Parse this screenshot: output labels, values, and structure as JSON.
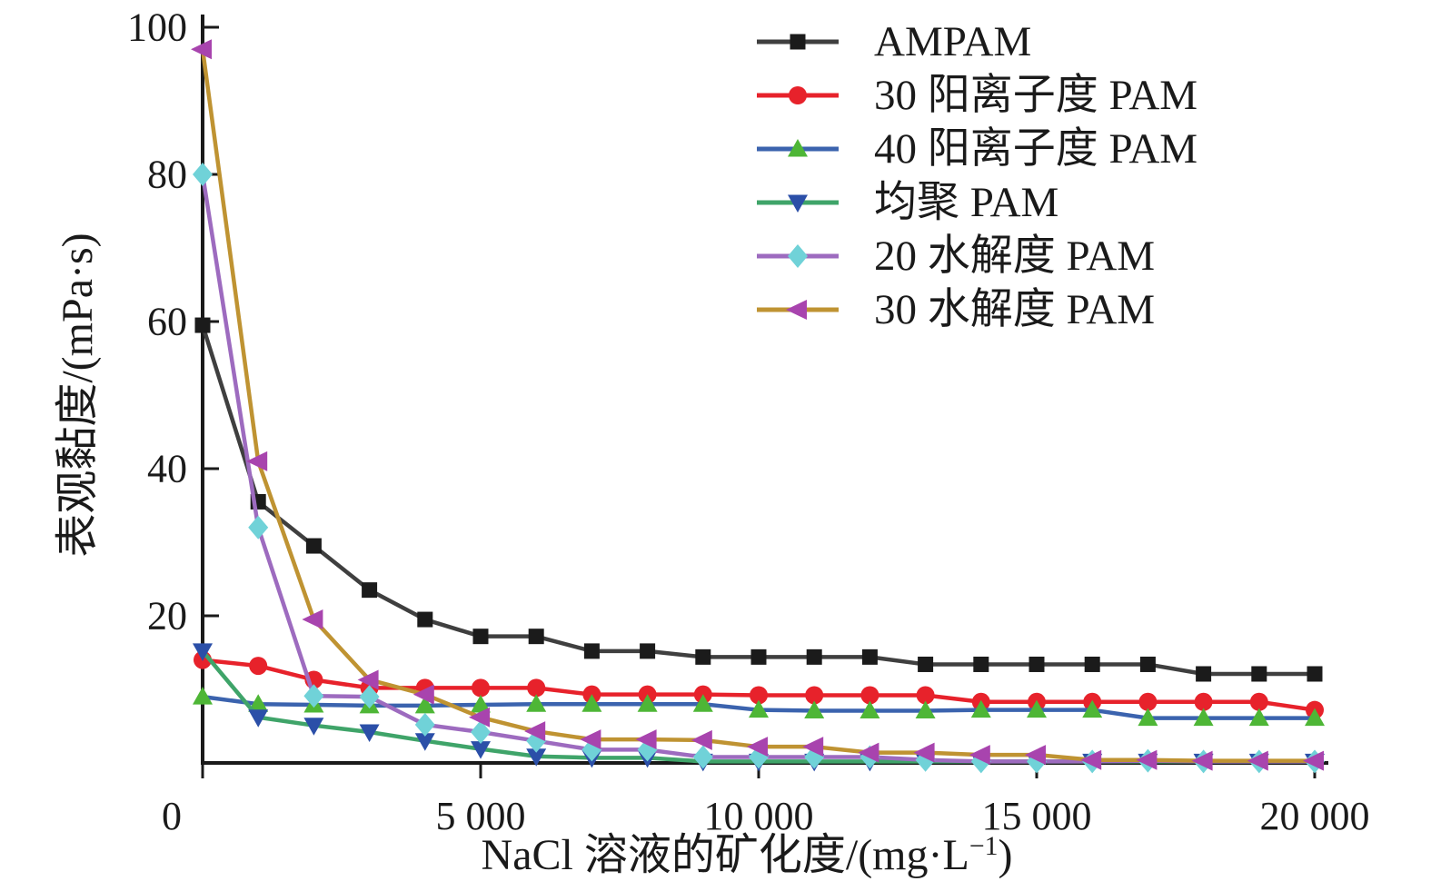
{
  "chart_data": {
    "type": "line",
    "title": "",
    "ylabel": "表观黏度/(mPa·s)",
    "xlabel": {
      "prefix": "NaCl 溶液的矿化度/(mg·L",
      "sup": "−1",
      "suffix": ")"
    },
    "xlim": [
      0,
      20000
    ],
    "ylim": [
      0,
      100
    ],
    "grid": false,
    "legend_position": "top-right",
    "axis_color": "#1a1a1a",
    "x_ticks": [
      {
        "value": 0,
        "label": "0"
      },
      {
        "value": 5000,
        "label": "5 000"
      },
      {
        "value": 10000,
        "label": "10 000"
      },
      {
        "value": 15000,
        "label": "15 000"
      },
      {
        "value": 20000,
        "label": "20 000"
      }
    ],
    "y_ticks": [
      {
        "value": 20,
        "label": "20"
      },
      {
        "value": 40,
        "label": "40"
      },
      {
        "value": 60,
        "label": "60"
      },
      {
        "value": 80,
        "label": "80"
      },
      {
        "value": 100,
        "label": "100"
      }
    ],
    "x": [
      0,
      1000,
      2000,
      3000,
      4000,
      5000,
      6000,
      7000,
      8000,
      9000,
      10000,
      11000,
      12000,
      13000,
      14000,
      15000,
      16000,
      17000,
      18000,
      19000,
      20000
    ],
    "series": [
      {
        "name": "AMPAM",
        "marker": "square",
        "line_color": "#3f3f3f",
        "marker_color": "#1b1b1b",
        "values": [
          59.5,
          35.5,
          29.5,
          23.5,
          19.5,
          17.2,
          17.2,
          15.2,
          15.2,
          14.4,
          14.4,
          14.4,
          14.4,
          13.4,
          13.4,
          13.4,
          13.4,
          13.4,
          12.1,
          12.1,
          12.1
        ]
      },
      {
        "name": "30 阳离子度 PAM",
        "marker": "circle",
        "line_color": "#e7222b",
        "marker_color": "#e7222b",
        "values": [
          14,
          13.2,
          11.3,
          10.2,
          10.2,
          10.2,
          10.2,
          9.3,
          9.3,
          9.3,
          9.2,
          9.2,
          9.2,
          9.2,
          8.3,
          8.3,
          8.3,
          8.3,
          8.3,
          8.3,
          7.2
        ]
      },
      {
        "name": "40 阳离子度 PAM",
        "marker": "triangle-up",
        "line_color": "#3b63ae",
        "marker_color": "#4eb636",
        "values": [
          9,
          8,
          7.9,
          7.8,
          7.8,
          7.9,
          8,
          8,
          8,
          8,
          7.2,
          7.1,
          7.1,
          7.1,
          7.2,
          7.2,
          7.2,
          6.1,
          6.1,
          6.1,
          6.1
        ]
      },
      {
        "name": "均聚 PAM",
        "marker": "triangle-down",
        "line_color": "#3fa469",
        "marker_color": "#2b4fa8",
        "values": [
          15.2,
          6.2,
          5.1,
          4.2,
          3,
          1.9,
          0.9,
          0.7,
          0.7,
          0.2,
          0.2,
          0.2,
          0.2,
          0.2,
          0.2,
          0.2,
          0.2,
          0.2,
          0.2,
          0.2,
          0.2
        ]
      },
      {
        "name": "20 水解度 PAM",
        "marker": "diamond",
        "line_color": "#9d6bbf",
        "marker_color": "#70d2d8",
        "values": [
          80,
          32,
          9.1,
          9,
          5.2,
          4.2,
          3,
          1.8,
          1.8,
          0.8,
          0.8,
          0.8,
          0.8,
          0.4,
          0.2,
          0.2,
          0.2,
          0.3,
          0.2,
          0.2,
          0.2
        ]
      },
      {
        "name": "30 水解度 PAM",
        "marker": "triangle-left",
        "line_color": "#bf9332",
        "marker_color": "#a844ae",
        "values": [
          97,
          41,
          19.5,
          11.3,
          9.3,
          6.2,
          4.3,
          3.2,
          3.2,
          3.1,
          2.2,
          2.2,
          1.4,
          1.4,
          1.1,
          1.1,
          0.4,
          0.4,
          0.3,
          0.3,
          0.3
        ]
      }
    ]
  }
}
